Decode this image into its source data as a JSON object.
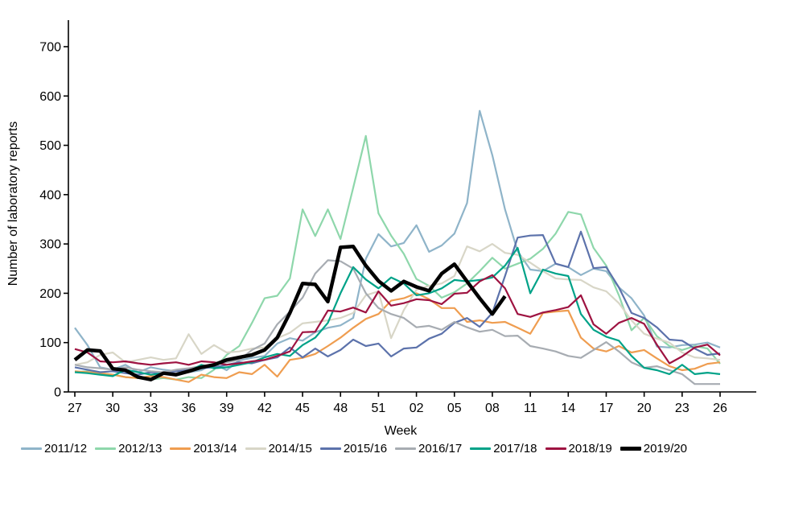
{
  "chart_data": {
    "type": "line",
    "title": "",
    "xlabel": "Week",
    "ylabel": "Number of laboratory reports",
    "ylim": [
      0,
      700
    ],
    "y_ticks": [
      0,
      100,
      200,
      300,
      400,
      500,
      600,
      700
    ],
    "grid": false,
    "legend_position": "bottom",
    "x_tick_labels": [
      "27",
      "30",
      "33",
      "36",
      "39",
      "42",
      "45",
      "48",
      "51",
      "02",
      "05",
      "08",
      "11",
      "14",
      "17",
      "20",
      "23",
      "26"
    ],
    "x_categories": [
      "27",
      "28",
      "29",
      "30",
      "31",
      "32",
      "33",
      "34",
      "35",
      "36",
      "37",
      "38",
      "39",
      "40",
      "41",
      "42",
      "43",
      "44",
      "45",
      "46",
      "47",
      "48",
      "49",
      "50",
      "51",
      "52",
      "01",
      "02",
      "03",
      "04",
      "05",
      "06",
      "07",
      "08",
      "09",
      "10",
      "11",
      "12",
      "13",
      "14",
      "15",
      "16",
      "17",
      "18",
      "19",
      "20",
      "21",
      "22",
      "23",
      "24",
      "25",
      "26"
    ],
    "series": [
      {
        "name": "2011/12",
        "color": "#8fb4c9",
        "width": 2.2,
        "values": [
          130,
          95,
          50,
          45,
          55,
          40,
          50,
          45,
          42,
          40,
          44,
          57,
          44,
          64,
          69,
          73,
          98,
          109,
          104,
          121,
          130,
          135,
          150,
          270,
          320,
          295,
          302,
          338,
          284,
          297,
          321,
          383,
          570,
          480,
          370,
          285,
          248,
          245,
          260,
          253,
          237,
          250,
          245,
          212,
          190,
          155,
          92,
          90,
          95,
          96,
          100,
          90
        ]
      },
      {
        "name": "2012/13",
        "color": "#8ed7ab",
        "width": 2.2,
        "values": [
          40,
          42,
          38,
          35,
          30,
          28,
          25,
          28,
          25,
          30,
          28,
          45,
          75,
          93,
          140,
          190,
          195,
          230,
          370,
          316,
          370,
          310,
          414,
          519,
          362,
          317,
          280,
          229,
          215,
          191,
          202,
          220,
          245,
          272,
          250,
          260,
          270,
          290,
          321,
          365,
          360,
          292,
          256,
          196,
          125,
          150,
          113,
          93,
          85,
          93,
          88,
          57
        ]
      },
      {
        "name": "2013/14",
        "color": "#ef9d50",
        "width": 2.2,
        "values": [
          42,
          40,
          38,
          35,
          30,
          28,
          32,
          30,
          25,
          20,
          35,
          30,
          28,
          40,
          36,
          55,
          31,
          65,
          69,
          77,
          93,
          110,
          130,
          148,
          158,
          185,
          190,
          200,
          188,
          170,
          170,
          142,
          145,
          140,
          142,
          130,
          118,
          160,
          163,
          165,
          110,
          88,
          82,
          93,
          80,
          85,
          68,
          52,
          44,
          47,
          57,
          60
        ]
      },
      {
        "name": "2014/15",
        "color": "#d8d6c7",
        "width": 2.2,
        "values": [
          55,
          60,
          75,
          80,
          60,
          65,
          70,
          65,
          68,
          117,
          77,
          95,
          80,
          82,
          88,
          90,
          109,
          120,
          139,
          142,
          145,
          150,
          160,
          196,
          204,
          109,
          166,
          207,
          215,
          220,
          235,
          295,
          285,
          300,
          282,
          278,
          262,
          245,
          230,
          228,
          227,
          212,
          204,
          180,
          145,
          118,
          108,
          100,
          80,
          70,
          68,
          65
        ]
      },
      {
        "name": "2015/16",
        "color": "#5c72ab",
        "width": 2.2,
        "values": [
          50,
          45,
          40,
          42,
          38,
          35,
          40,
          38,
          42,
          45,
          48,
          50,
          55,
          60,
          58,
          65,
          70,
          90,
          70,
          88,
          72,
          85,
          106,
          93,
          98,
          72,
          88,
          90,
          108,
          118,
          140,
          150,
          132,
          160,
          235,
          313,
          317,
          318,
          260,
          253,
          325,
          251,
          253,
          212,
          160,
          150,
          131,
          106,
          104,
          88,
          75,
          78
        ]
      },
      {
        "name": "2016/17",
        "color": "#a7acb2",
        "width": 2.2,
        "values": [
          55,
          50,
          48,
          45,
          50,
          45,
          42,
          40,
          45,
          48,
          52,
          55,
          60,
          65,
          85,
          98,
          137,
          163,
          191,
          240,
          267,
          265,
          250,
          200,
          170,
          158,
          150,
          131,
          134,
          126,
          142,
          131,
          122,
          126,
          113,
          114,
          93,
          88,
          82,
          73,
          69,
          85,
          101,
          82,
          60,
          49,
          52,
          44,
          36,
          16,
          16,
          16
        ]
      },
      {
        "name": "2017/18",
        "color": "#00a288",
        "width": 2.2,
        "values": [
          40,
          38,
          35,
          32,
          45,
          40,
          35,
          38,
          35,
          42,
          55,
          48,
          50,
          55,
          60,
          70,
          77,
          73,
          95,
          110,
          140,
          200,
          253,
          228,
          210,
          232,
          220,
          196,
          200,
          210,
          227,
          224,
          227,
          232,
          256,
          292,
          200,
          248,
          240,
          235,
          158,
          126,
          112,
          104,
          73,
          49,
          44,
          36,
          55,
          36,
          39,
          36
        ]
      },
      {
        "name": "2018/19",
        "color": "#9e1341",
        "width": 2.2,
        "values": [
          87,
          80,
          62,
          60,
          62,
          58,
          55,
          58,
          60,
          55,
          62,
          60,
          55,
          58,
          62,
          65,
          73,
          82,
          121,
          122,
          165,
          163,
          171,
          161,
          204,
          175,
          180,
          188,
          186,
          178,
          199,
          201,
          224,
          237,
          210,
          158,
          152,
          161,
          166,
          172,
          196,
          137,
          118,
          140,
          150,
          138,
          96,
          58,
          72,
          90,
          96,
          74
        ]
      },
      {
        "name": "2019/20",
        "color": "#000000",
        "width": 4.5,
        "values": [
          65,
          85,
          83,
          47,
          44,
          30,
          25,
          38,
          35,
          42,
          50,
          55,
          65,
          70,
          75,
          85,
          110,
          160,
          220,
          218,
          183,
          293,
          295,
          256,
          225,
          205,
          224,
          213,
          205,
          240,
          259,
          224,
          190,
          158,
          194,
          null,
          null,
          null,
          null,
          null,
          null,
          null,
          null,
          null,
          null,
          null,
          null,
          null,
          null,
          null,
          null,
          null
        ]
      }
    ]
  }
}
